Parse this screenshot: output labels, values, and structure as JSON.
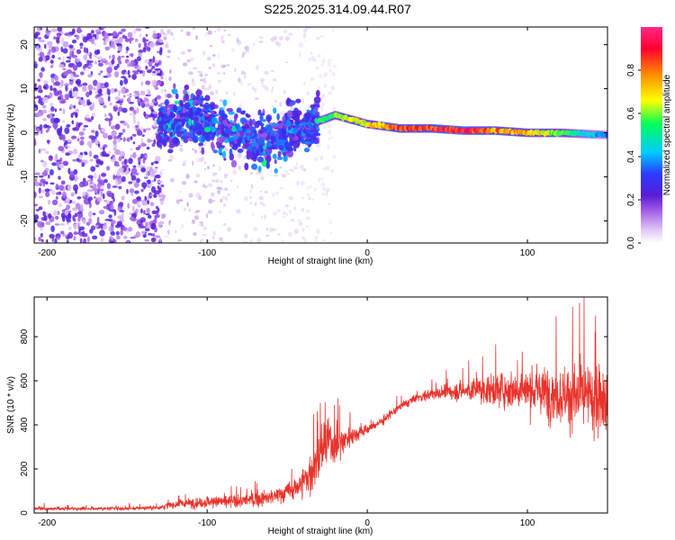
{
  "title": "S225.2025.314.09.44.R07",
  "colors": {
    "signal": "#e8332c",
    "frame": "#000000"
  },
  "chart_data": [
    {
      "type": "heatmap",
      "title": "S225.2025.314.09.44.R07",
      "xlabel": "Height of straight line (km)",
      "ylabel": "Frequency (Hz)",
      "xlim": [
        -208,
        150
      ],
      "ylim": [
        -25,
        24
      ],
      "xticks": [
        -200,
        -100,
        0,
        100
      ],
      "xtick_labels": [
        "-200",
        "-100",
        "0",
        "100"
      ],
      "yticks": [
        -20,
        -10,
        0,
        10,
        20
      ],
      "ytick_labels": [
        "-20",
        "-10",
        "0",
        "10",
        "20"
      ],
      "colorbar": {
        "label": "Normalized spectral amplitude",
        "range": [
          0,
          1
        ],
        "ticks": [
          0.0,
          0.2,
          0.4,
          0.6,
          0.8
        ],
        "tick_labels": [
          "0.0",
          "0.2",
          "0.4",
          "0.6",
          "0.8"
        ],
        "colormap": [
          "#ffffff",
          "#d9b8f0",
          "#8a2be2",
          "#3333ff",
          "#00e5ff",
          "#00ff66",
          "#ffff00",
          "#ff8800",
          "#ff0044",
          "#ff1a80"
        ]
      },
      "ridge": {
        "description": "signal frequency track",
        "x": [
          -130,
          -110,
          -90,
          -70,
          -50,
          -35,
          -20,
          0,
          20,
          40,
          60,
          80,
          100,
          120,
          150
        ],
        "freq": [
          2,
          4,
          1,
          -2,
          0,
          2,
          4,
          2,
          1,
          1,
          0.5,
          0.5,
          0,
          0,
          -0.5
        ],
        "amplitude": [
          0.3,
          0.35,
          0.35,
          0.35,
          0.4,
          0.5,
          0.6,
          0.7,
          0.85,
          0.9,
          0.95,
          0.8,
          0.75,
          0.6,
          0.35
        ]
      }
    },
    {
      "type": "line",
      "title": "",
      "xlabel": "Height of straight line (km)",
      "ylabel": "SNR (10 * v/v)",
      "xlim": [
        -208,
        150
      ],
      "ylim": [
        0,
        980
      ],
      "xticks": [
        -200,
        -100,
        0,
        100
      ],
      "xtick_labels": [
        "-200",
        "-100",
        "0",
        "100"
      ],
      "yticks": [
        0,
        200,
        400,
        600,
        800
      ],
      "ytick_labels": [
        "0",
        "200",
        "400",
        "600",
        "800"
      ],
      "series": [
        {
          "name": "SNR",
          "color": "#e8332c",
          "envelope_x": [
            -208,
            -180,
            -150,
            -130,
            -120,
            -100,
            -80,
            -60,
            -45,
            -35,
            -30,
            -25,
            -20,
            -15,
            -10,
            0,
            10,
            20,
            30,
            40,
            60,
            80,
            100,
            120,
            140,
            150
          ],
          "envelope_mean": [
            20,
            20,
            20,
            25,
            40,
            50,
            55,
            70,
            110,
            180,
            260,
            330,
            300,
            330,
            350,
            380,
            420,
            480,
            520,
            540,
            555,
            560,
            560,
            540,
            520,
            480
          ],
          "envelope_spread": [
            12,
            12,
            12,
            15,
            30,
            40,
            45,
            55,
            70,
            160,
            180,
            170,
            120,
            110,
            60,
            40,
            30,
            30,
            30,
            40,
            70,
            110,
            150,
            200,
            260,
            280
          ]
        }
      ]
    }
  ]
}
